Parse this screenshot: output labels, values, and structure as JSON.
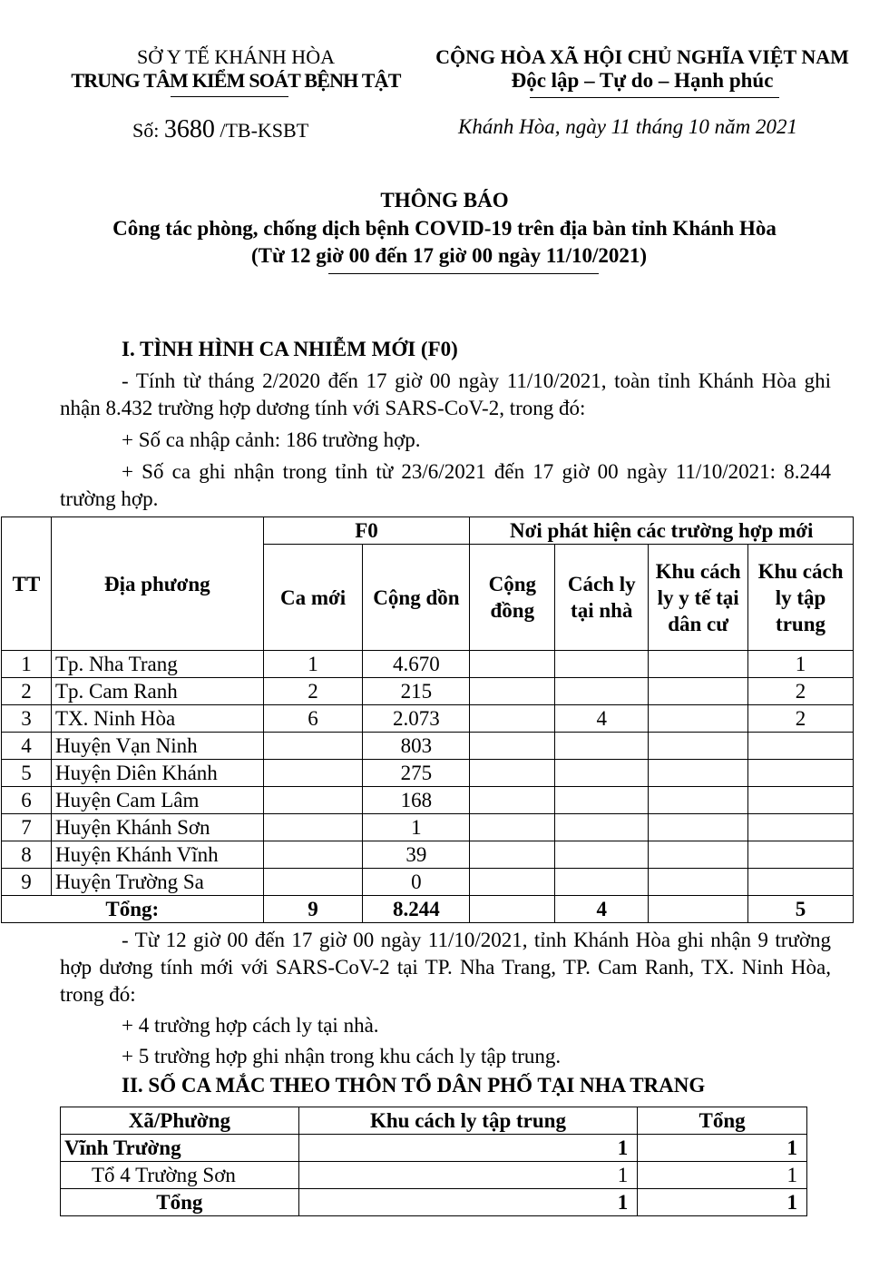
{
  "header": {
    "agency_parent": "SỞ Y TẾ KHÁNH HÒA",
    "agency": "TRUNG TÂM KIỂM SOÁT BỆNH TẬT",
    "nation": "CỘNG HÒA XÃ HỘI CHỦ NGHĨA VIỆT NAM",
    "motto": "Độc lập – Tự do – Hạnh phúc",
    "doc_number_label": "Số:",
    "doc_number": "3680",
    "doc_code": "/TB-KSBT",
    "place_date": "Khánh Hòa, ngày  11 tháng 10 năm 2021"
  },
  "title": {
    "main": "THÔNG BÁO",
    "subtitle": "Công tác phòng, chống dịch bệnh COVID-19 trên địa bàn tỉnh Khánh Hòa",
    "period": "(Từ 12 giờ 00 đến 17 giờ 00 ngày 11/10/2021)"
  },
  "section1": {
    "heading": "I. TÌNH HÌNH CA NHIỄM MỚI (F0)",
    "p1": "- Tính từ tháng 2/2020 đến 17 giờ 00 ngày 11/10/2021, toàn tỉnh Khánh Hòa ghi nhận 8.432 trường hợp dương tính với SARS-CoV-2, trong đó:",
    "p2": "+ Số ca nhập cảnh: 186 trường hợp.",
    "p3": "+ Số ca ghi nhận trong tỉnh từ 23/6/2021 đến 17 giờ 00 ngày 11/10/2021: 8.244 trường hợp.",
    "table": {
      "h_tt": "TT",
      "h_place": "Địa phương",
      "h_f0": "F0",
      "h_found": "Nơi phát hiện các trường hợp mới",
      "h_new": "Ca mới",
      "h_cum": "Cộng dồn",
      "h_comm": "Cộng đồng",
      "h_home": "Cách ly tại nhà",
      "h_resid": "Khu cách ly y tế tại dân cư",
      "h_central": "Khu cách ly tập trung",
      "rows": [
        {
          "tt": "1",
          "place": "Tp. Nha Trang",
          "new": "1",
          "cum": "4.670",
          "comm": "",
          "home": "",
          "resid": "",
          "central": "1"
        },
        {
          "tt": "2",
          "place": "Tp. Cam Ranh",
          "new": "2",
          "cum": "215",
          "comm": "",
          "home": "",
          "resid": "",
          "central": "2"
        },
        {
          "tt": "3",
          "place": "TX. Ninh Hòa",
          "new": "6",
          "cum": "2.073",
          "comm": "",
          "home": "4",
          "resid": "",
          "central": "2"
        },
        {
          "tt": "4",
          "place": "Huyện Vạn Ninh",
          "new": "",
          "cum": "803",
          "comm": "",
          "home": "",
          "resid": "",
          "central": ""
        },
        {
          "tt": "5",
          "place": "Huyện Diên Khánh",
          "new": "",
          "cum": "275",
          "comm": "",
          "home": "",
          "resid": "",
          "central": ""
        },
        {
          "tt": "6",
          "place": "Huyện Cam Lâm",
          "new": "",
          "cum": "168",
          "comm": "",
          "home": "",
          "resid": "",
          "central": ""
        },
        {
          "tt": "7",
          "place": "Huyện Khánh Sơn",
          "new": "",
          "cum": "1",
          "comm": "",
          "home": "",
          "resid": "",
          "central": ""
        },
        {
          "tt": "8",
          "place": "Huyện Khánh Vĩnh",
          "new": "",
          "cum": "39",
          "comm": "",
          "home": "",
          "resid": "",
          "central": ""
        },
        {
          "tt": "9",
          "place": "Huyện Trường Sa",
          "new": "",
          "cum": "0",
          "comm": "",
          "home": "",
          "resid": "",
          "central": ""
        }
      ],
      "total": {
        "label": "Tổng:",
        "new": "9",
        "cum": "8.244",
        "comm": "",
        "home": "4",
        "resid": "",
        "central": "5"
      }
    },
    "p4": "- Từ 12 giờ 00 đến 17 giờ 00 ngày 11/10/2021, tỉnh Khánh Hòa ghi nhận 9 trường hợp dương tính mới với SARS-CoV-2 tại TP. Nha Trang, TP. Cam Ranh, TX. Ninh Hòa, trong đó:",
    "p5": "+ 4 trường hợp cách ly tại nhà.",
    "p6": "+ 5 trường hợp ghi nhận trong khu cách ly tập trung."
  },
  "section2": {
    "heading": "II. SỐ CA MẮC THEO THÔN TỔ DÂN PHỐ TẠI NHA TRANG",
    "table": {
      "h_ward": "Xã/Phường",
      "h_central": "Khu cách ly tập trung",
      "h_total": "Tổng",
      "rows": [
        {
          "ward": "Vĩnh Trường",
          "central": "1",
          "total": "1"
        },
        {
          "ward": "Tổ 4 Trường Sơn",
          "central": "1",
          "total": "1"
        }
      ],
      "sum": {
        "label": "Tổng",
        "central": "1",
        "total": "1"
      }
    }
  }
}
